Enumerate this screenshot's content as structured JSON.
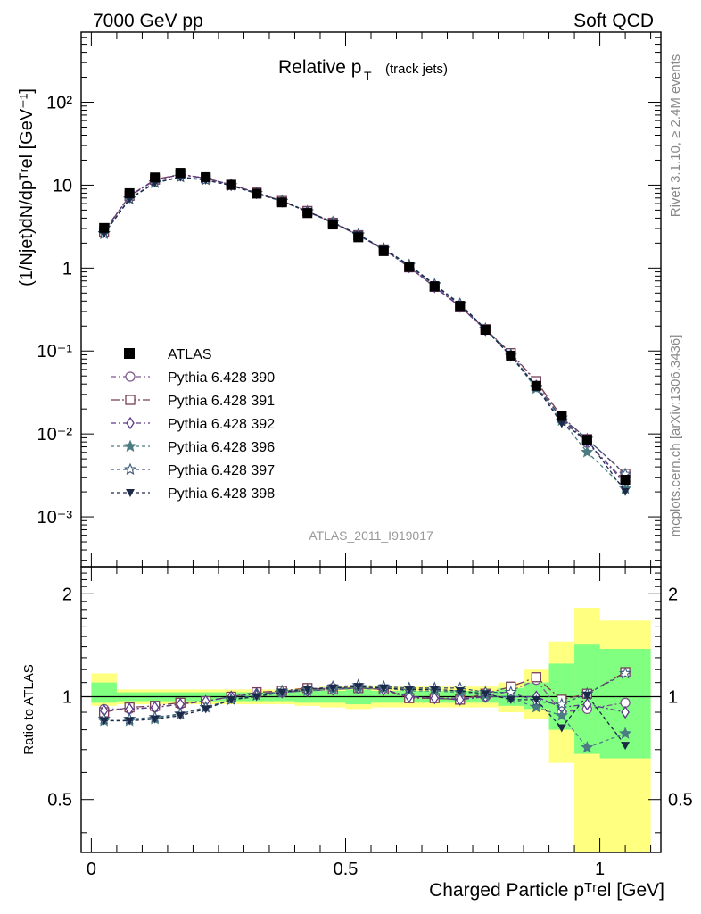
{
  "header": {
    "left": "7000 GeV pp",
    "right": "Soft QCD",
    "title_main": "Relative p",
    "title_sub": "T",
    "title_paren": "(track jets)",
    "analysis_id": "ATLAS_2011_I919017"
  },
  "side_labels": {
    "rivet": "Rivet 3.1.10, ≥ 2.4M events",
    "mcplots": "mcplots.cern.ch [arXiv:1306.3436]"
  },
  "axes": {
    "ylabel_main": "(1/Njet)dN/dpᵀʳel [GeV⁻¹]",
    "ylabel_ratio": "Ratio to ATLAS",
    "xlabel": "Charged Particle pᵀʳel [GeV]",
    "main_ticks": [
      "10⁻³",
      "10⁻²",
      "10⁻¹",
      "1",
      "10",
      "10²"
    ],
    "ratio_ticks": [
      "0.5",
      "1",
      "2"
    ],
    "x_ticks": [
      "0",
      "0.5",
      "1"
    ]
  },
  "colors": {
    "atlas": "#000000",
    "p390": "#7a5a8a",
    "p391": "#7a3f55",
    "p392": "#5a3a8a",
    "p396": "#4a7c82",
    "p397": "#3c5a7a",
    "p398": "#1c2a4a",
    "band_inner": "#80ff80",
    "band_outer": "#ffff80"
  },
  "chart_data": {
    "type": "line",
    "title": "Relative pT (track jets)",
    "xlabel": "Charged Particle pTrel [GeV]",
    "ylabel": "(1/Njet)dN/dpTrel [GeV^-1]",
    "xlim": [
      -0.02,
      1.12
    ],
    "ylim": [
      0.00025,
      700
    ],
    "yscale": "log",
    "ratio_ylim": [
      0.35,
      2.4
    ],
    "bins": [
      0.0,
      0.05,
      0.1,
      0.15,
      0.2,
      0.25,
      0.3,
      0.35,
      0.4,
      0.45,
      0.5,
      0.55,
      0.6,
      0.65,
      0.7,
      0.75,
      0.8,
      0.85,
      0.9,
      0.95,
      1.0,
      1.1
    ],
    "x": [
      0.025,
      0.075,
      0.125,
      0.175,
      0.225,
      0.275,
      0.325,
      0.375,
      0.425,
      0.475,
      0.525,
      0.575,
      0.625,
      0.675,
      0.725,
      0.775,
      0.825,
      0.875,
      0.925,
      0.975,
      1.05
    ],
    "atlas": [
      3.05,
      8.0,
      12.4,
      14.1,
      12.5,
      10.1,
      7.9,
      6.2,
      4.6,
      3.35,
      2.35,
      1.6,
      1.03,
      0.6,
      0.35,
      0.18,
      0.088,
      0.038,
      0.0165,
      0.0085,
      0.0028
    ],
    "band_inner": [
      [
        0.96,
        1.1
      ],
      [
        0.97,
        1.03
      ],
      [
        0.97,
        1.03
      ],
      [
        0.97,
        1.03
      ],
      [
        0.97,
        1.03
      ],
      [
        0.97,
        1.03
      ],
      [
        0.97,
        1.03
      ],
      [
        0.97,
        1.03
      ],
      [
        0.96,
        1.04
      ],
      [
        0.96,
        1.04
      ],
      [
        0.95,
        1.05
      ],
      [
        0.96,
        1.04
      ],
      [
        0.96,
        1.04
      ],
      [
        0.96,
        1.04
      ],
      [
        0.96,
        1.04
      ],
      [
        0.96,
        1.04
      ],
      [
        0.94,
        1.06
      ],
      [
        0.92,
        1.1
      ],
      [
        0.8,
        1.25
      ],
      [
        0.68,
        1.42
      ],
      [
        0.66,
        1.38
      ]
    ],
    "band_outer": [
      [
        0.94,
        1.17
      ],
      [
        0.95,
        1.05
      ],
      [
        0.95,
        1.05
      ],
      [
        0.95,
        1.05
      ],
      [
        0.95,
        1.05
      ],
      [
        0.95,
        1.05
      ],
      [
        0.95,
        1.05
      ],
      [
        0.95,
        1.05
      ],
      [
        0.94,
        1.06
      ],
      [
        0.93,
        1.07
      ],
      [
        0.92,
        1.08
      ],
      [
        0.93,
        1.07
      ],
      [
        0.93,
        1.07
      ],
      [
        0.93,
        1.07
      ],
      [
        0.93,
        1.07
      ],
      [
        0.93,
        1.07
      ],
      [
        0.9,
        1.1
      ],
      [
        0.86,
        1.2
      ],
      [
        0.64,
        1.45
      ],
      [
        0.3,
        1.82
      ],
      [
        0.3,
        1.67
      ]
    ],
    "series": [
      {
        "name": "Pythia 6.428 390",
        "marker": "circle",
        "dash": "6,3,2,3",
        "color_key": "p390",
        "ratio": [
          0.92,
          0.92,
          0.93,
          0.95,
          0.97,
          1.0,
          1.02,
          1.03,
          1.05,
          1.06,
          1.06,
          1.05,
          1.0,
          0.99,
          0.99,
          1.0,
          1.04,
          1.12,
          0.9,
          0.92,
          0.96
        ]
      },
      {
        "name": "Pythia 6.428 391",
        "marker": "square",
        "dash": "10,3,2,3",
        "color_key": "p391",
        "ratio": [
          0.9,
          0.93,
          0.94,
          0.96,
          0.97,
          1.0,
          1.03,
          1.04,
          1.06,
          1.05,
          1.06,
          1.05,
          0.99,
          0.99,
          0.98,
          1.02,
          1.07,
          1.14,
          0.98,
          1.02,
          1.18
        ]
      },
      {
        "name": "Pythia 6.428 392",
        "marker": "diamond",
        "dash": "6,3,2,3",
        "color_key": "p392",
        "ratio": [
          0.91,
          0.92,
          0.93,
          0.95,
          0.97,
          1.0,
          1.02,
          1.03,
          1.04,
          1.05,
          1.06,
          1.05,
          1.0,
          0.99,
          0.98,
          1.0,
          1.0,
          1.0,
          0.93,
          0.95,
          0.9
        ]
      },
      {
        "name": "Pythia 6.428 396",
        "marker": "star-filled",
        "dash": "4,3",
        "color_key": "p396",
        "ratio": [
          0.85,
          0.85,
          0.86,
          0.89,
          0.93,
          0.98,
          1.01,
          1.03,
          1.04,
          1.05,
          1.06,
          1.06,
          1.04,
          1.04,
          1.03,
          1.01,
          0.99,
          0.93,
          0.88,
          0.71,
          0.78
        ]
      },
      {
        "name": "Pythia 6.428 397",
        "marker": "star-open",
        "dash": "4,3",
        "color_key": "p397",
        "ratio": [
          0.86,
          0.86,
          0.87,
          0.89,
          0.93,
          0.98,
          1.01,
          1.04,
          1.05,
          1.07,
          1.08,
          1.07,
          1.06,
          1.06,
          1.06,
          1.03,
          1.03,
          0.97,
          0.95,
          1.02,
          1.17
        ]
      },
      {
        "name": "Pythia 6.428 398",
        "marker": "triangle-down",
        "dash": "4,3",
        "color_key": "p398",
        "ratio": [
          0.85,
          0.85,
          0.86,
          0.88,
          0.92,
          0.98,
          1.0,
          1.03,
          1.05,
          1.06,
          1.07,
          1.06,
          1.05,
          1.05,
          1.04,
          1.02,
          0.98,
          0.98,
          0.81,
          1.01,
          0.72
        ]
      }
    ]
  },
  "legend": {
    "atlas_label": "ATLAS",
    "entries": [
      "Pythia 6.428 390",
      "Pythia 6.428 391",
      "Pythia 6.428 392",
      "Pythia 6.428 396",
      "Pythia 6.428 397",
      "Pythia 6.428 398"
    ]
  }
}
